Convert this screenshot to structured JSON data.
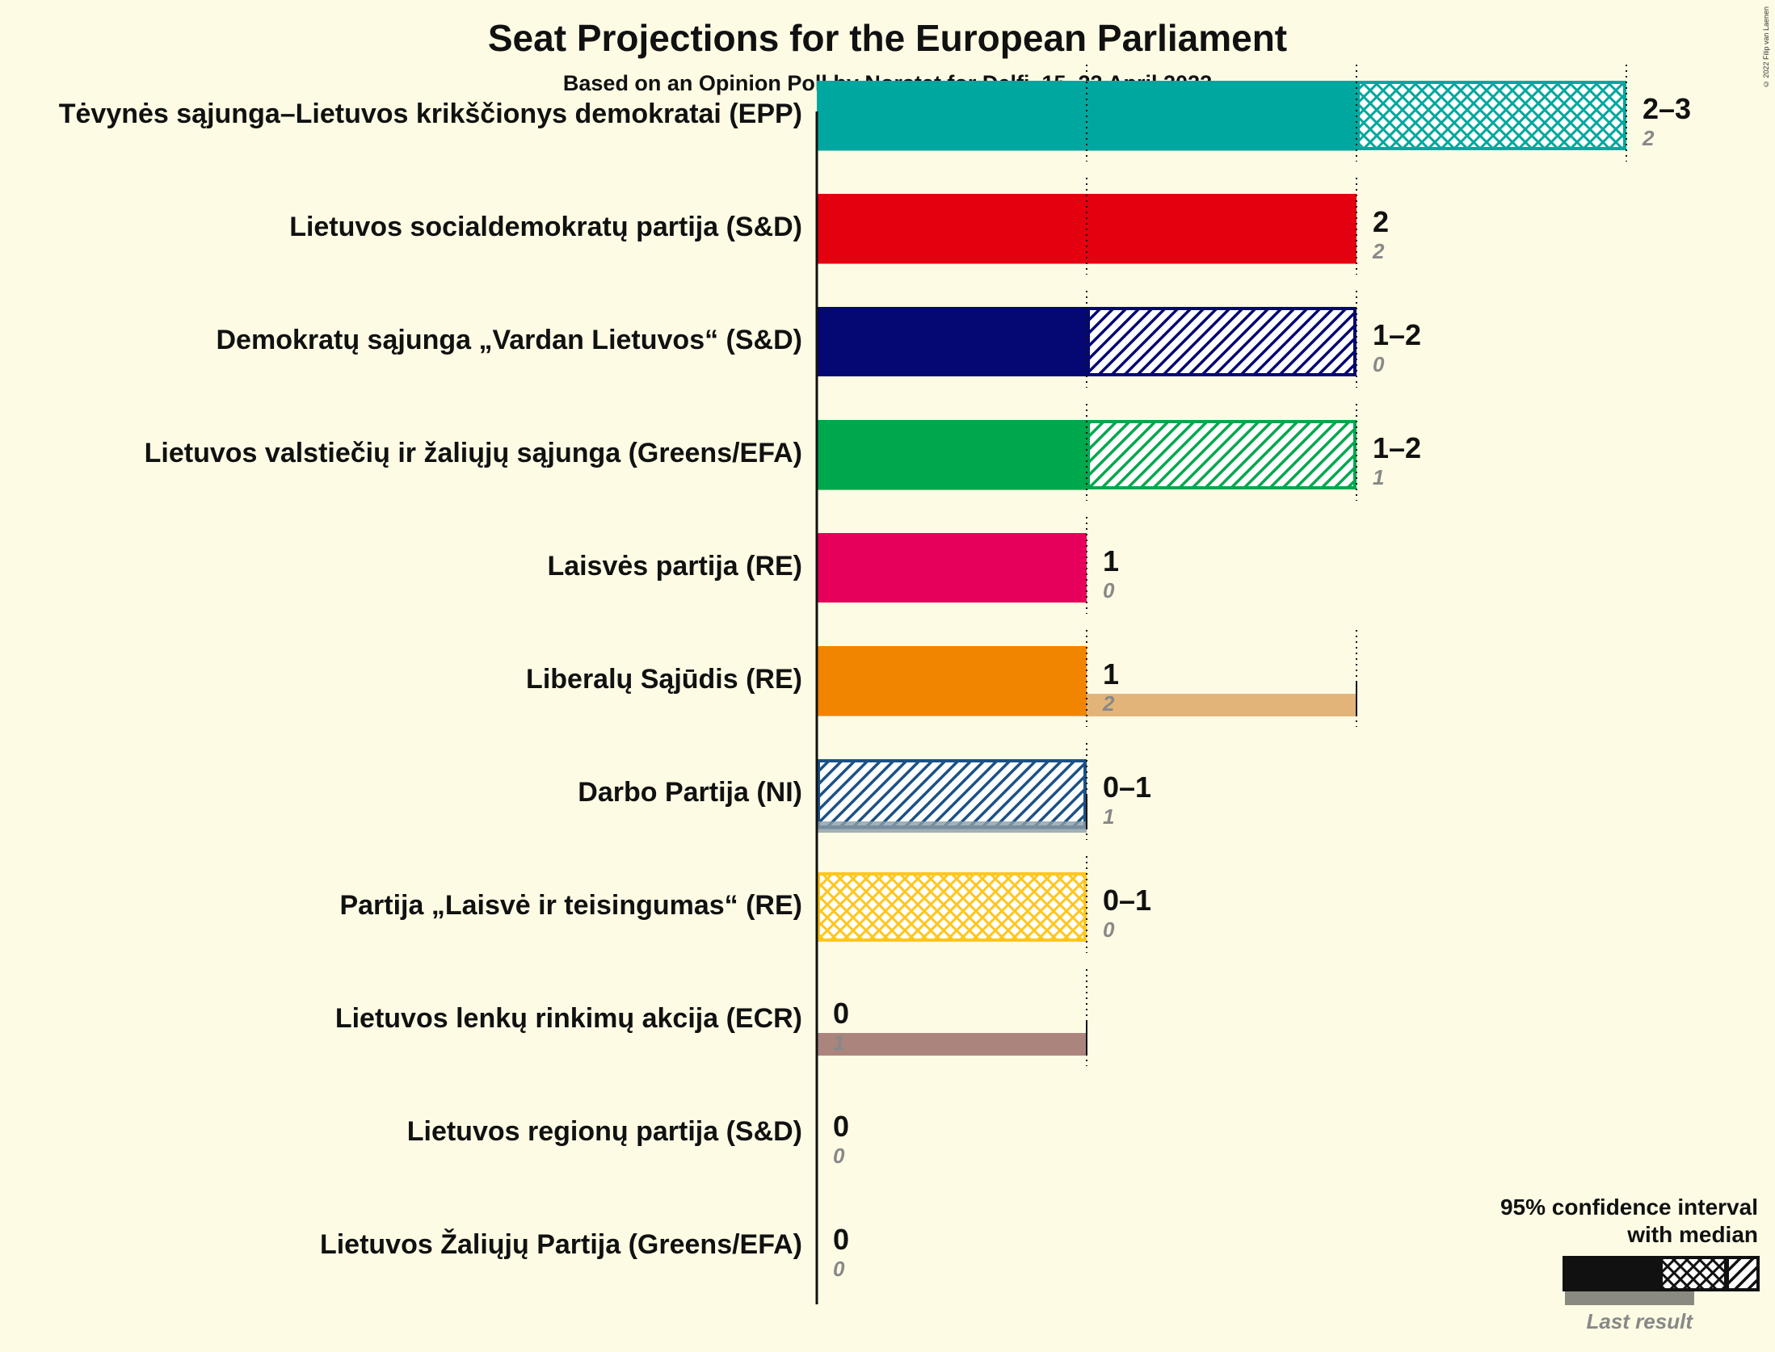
{
  "chart_data": {
    "type": "bar",
    "title": "Seat Projections for the European Parliament",
    "subtitle": "Based on an Opinion Poll by Norstat for Delfi, 15–22 April 2022",
    "copyright": "© 2022 Filip van Laenen",
    "xlim": [
      0,
      3
    ],
    "parties": [
      {
        "name": "Tėvynės sąjunga–Lietuvos krikščionys demokratai (EPP)",
        "low": 2,
        "median": 2,
        "high": 3,
        "range_label": "2–3",
        "last": 2,
        "last_label": "2",
        "color": "#00A79E",
        "last_color": "#80C8B8",
        "pattern": "cross"
      },
      {
        "name": "Lietuvos socialdemokratų partija (S&D)",
        "low": 2,
        "median": 2,
        "high": 2,
        "range_label": "2",
        "last": 2,
        "last_label": "2",
        "color": "#E3000F",
        "last_color": "#DE8078",
        "pattern": "none"
      },
      {
        "name": "Demokratų sąjunga „Vardan Lietuvos“ (S&D)",
        "low": 1,
        "median": 1,
        "high": 2,
        "range_label": "1–2",
        "last": 0,
        "last_label": "0",
        "color": "#050772",
        "last_color": "#7F80AC",
        "pattern": "diag"
      },
      {
        "name": "Lietuvos valstiečių ir žaliųjų sąjunga (Greens/EFA)",
        "low": 1,
        "median": 1,
        "high": 2,
        "range_label": "1–2",
        "last": 1,
        "last_label": "1",
        "color": "#00A84D",
        "last_color": "#80C28A",
        "pattern": "diag"
      },
      {
        "name": "Laisvės partija (RE)",
        "low": 1,
        "median": 1,
        "high": 1,
        "range_label": "1",
        "last": 0,
        "last_label": "0",
        "color": "#E6005C",
        "last_color": "#EE80A6",
        "pattern": "none"
      },
      {
        "name": "Liberalų Sąjūdis (RE)",
        "low": 1,
        "median": 1,
        "high": 1,
        "range_label": "1",
        "last": 2,
        "last_label": "2",
        "color": "#F28500",
        "last_color": "#E2B47A",
        "pattern": "none"
      },
      {
        "name": "Darbo Partija (NI)",
        "low": 0,
        "median": 0,
        "high": 1,
        "range_label": "0–1",
        "last": 1,
        "last_label": "1",
        "color": "#1B5186",
        "last_color": "#8C9EA8",
        "pattern": "diag"
      },
      {
        "name": "Partija „Laisvė ir teisingumas“ (RE)",
        "low": 0,
        "median": 0,
        "high": 1,
        "range_label": "0–1",
        "last": 0,
        "last_label": "0",
        "color": "#FFC61E",
        "last_color": "#F4D97A",
        "pattern": "cross"
      },
      {
        "name": "Lietuvos lenkų rinkimų akcija (ECR)",
        "low": 0,
        "median": 0,
        "high": 0,
        "range_label": "0",
        "last": 1,
        "last_label": "1",
        "color": "#8B2F2F",
        "last_color": "#AB857D",
        "pattern": "none"
      },
      {
        "name": "Lietuvos regionų partija (S&D)",
        "low": 0,
        "median": 0,
        "high": 0,
        "range_label": "0",
        "last": 0,
        "last_label": "0",
        "color": "#666666",
        "last_color": "#999999",
        "pattern": "none"
      },
      {
        "name": "Lietuvos Žaliųjų Partija (Greens/EFA)",
        "low": 0,
        "median": 0,
        "high": 0,
        "range_label": "0",
        "last": 0,
        "last_label": "0",
        "color": "#666666",
        "last_color": "#999999",
        "pattern": "none"
      }
    ],
    "legend": {
      "line1": "95% confidence interval",
      "line2": "with median",
      "last_result": "Last result",
      "position": "bottom-right"
    }
  }
}
